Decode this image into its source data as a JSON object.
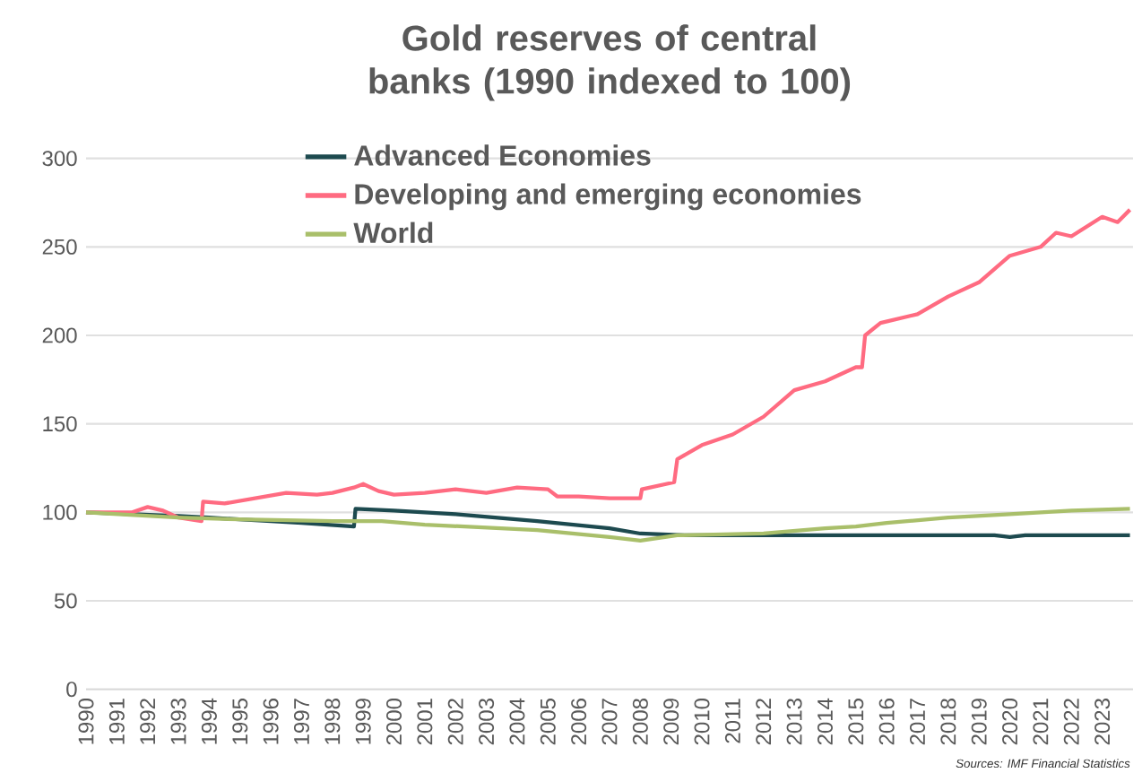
{
  "chart_data": {
    "type": "line",
    "title": "Gold reserves of central banks (1990 indexed to 100)",
    "xlim": [
      1990,
      2024
    ],
    "xticks": [
      1990,
      1991,
      1992,
      1993,
      1994,
      1995,
      1996,
      1997,
      1998,
      1999,
      2000,
      2001,
      2002,
      2003,
      2004,
      2005,
      2006,
      2007,
      2008,
      2009,
      2010,
      2011,
      2012,
      2013,
      2014,
      2015,
      2016,
      2017,
      2018,
      2019,
      2020,
      2021,
      2022,
      2023
    ],
    "ylim": [
      0,
      300
    ],
    "yticks": [
      0,
      50,
      100,
      150,
      200,
      250,
      300
    ],
    "grid": "y",
    "legend": "top left",
    "marker": "none",
    "line_style": "solid",
    "annotations": [
      "Sources: IMF Financial Statistics"
    ],
    "series": [
      {
        "name": "Advanced Economies",
        "color": "#1d4a4f",
        "x": [
          1990,
          1993,
          1994,
          1996,
          1997,
          1998.7,
          1998.75,
          2000,
          2002,
          2004.65,
          2007,
          2008,
          2009.5,
          2012,
          2016,
          2019.5,
          2020,
          2020.5,
          2023.9
        ],
        "values": [
          100,
          98,
          97,
          95,
          94,
          92,
          102,
          101,
          99,
          95,
          91,
          88,
          87,
          87,
          87,
          87,
          86,
          87,
          87
        ]
      },
      {
        "name": "Developing and emerging economies",
        "color": "#ff6b81",
        "x": [
          1990,
          1991.5,
          1992,
          1992.5,
          1993,
          1993.75,
          1993.8,
          1994.5,
          1995.5,
          1996.5,
          1997.5,
          1998,
          1998.7,
          1999,
          1999.5,
          2000,
          2001,
          2002,
          2003,
          2004,
          2005,
          2005.3,
          2006,
          2007,
          2008,
          2008.05,
          2009.1,
          2009.2,
          2010,
          2011,
          2012,
          2013,
          2014,
          2015,
          2015.2,
          2015.3,
          2015.8,
          2017,
          2018,
          2019,
          2020,
          2021,
          2021.5,
          2022,
          2023,
          2023.5,
          2023.9
        ],
        "values": [
          100,
          100,
          103,
          101,
          97,
          95,
          106,
          105,
          108,
          111,
          110,
          111,
          114,
          116,
          112,
          110,
          111,
          113,
          111,
          114,
          113,
          109,
          109,
          108,
          108,
          113,
          117,
          130,
          138,
          144,
          154,
          169,
          174,
          182,
          182,
          200,
          207,
          212,
          222,
          230,
          245,
          250,
          258,
          256,
          267,
          264,
          271
        ]
      },
      {
        "name": "World",
        "color": "#a9bf6a",
        "x": [
          1990,
          1993,
          1995,
          1998,
          1999.6,
          2001,
          2004.65,
          2007,
          2008,
          2009.2,
          2012,
          2014,
          2015,
          2016,
          2018,
          2020,
          2022,
          2023.9
        ],
        "values": [
          100,
          97,
          96,
          95,
          95,
          93,
          90,
          86,
          84,
          87,
          88,
          91,
          92,
          94,
          97,
          99,
          101,
          102
        ]
      }
    ]
  }
}
